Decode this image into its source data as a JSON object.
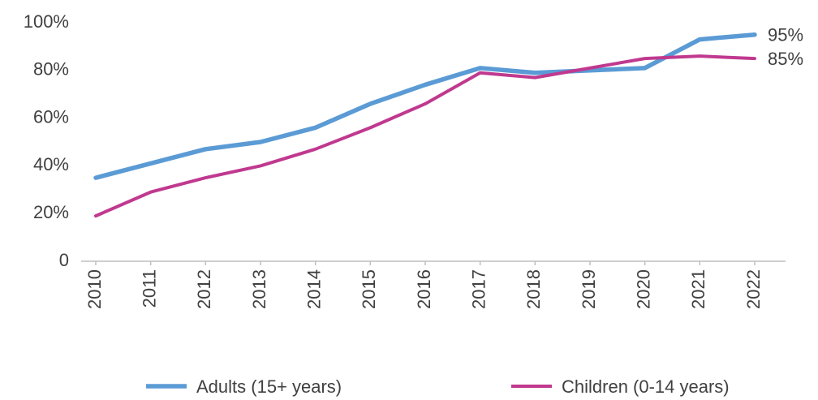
{
  "chart_data": {
    "type": "line",
    "categories": [
      "2010",
      "2011",
      "2012",
      "2013",
      "2014",
      "2015",
      "2016",
      "2017",
      "2018",
      "2019",
      "2020",
      "2021",
      "2022"
    ],
    "series": [
      {
        "name": "Adults (15+ years)",
        "color": "#5b9bd5",
        "values": [
          35,
          41,
          47,
          50,
          56,
          66,
          74,
          81,
          79,
          80,
          81,
          93,
          95
        ],
        "value_labels": [
          null,
          null,
          null,
          null,
          null,
          null,
          null,
          null,
          null,
          null,
          null,
          null,
          "95%"
        ]
      },
      {
        "name": "Children (0-14 years)",
        "color": "#c0398f",
        "values": [
          19,
          29,
          35,
          40,
          47,
          56,
          66,
          79,
          77,
          81,
          85,
          86,
          85
        ],
        "value_labels": [
          null,
          null,
          null,
          null,
          null,
          null,
          null,
          null,
          null,
          null,
          null,
          null,
          "85%"
        ]
      }
    ],
    "ylim": [
      0,
      100
    ],
    "yticks": [
      0,
      {
        "value": 20,
        "label": "20%"
      },
      {
        "value": 40,
        "label": "40%"
      },
      {
        "value": 60,
        "label": "60%"
      },
      {
        "value": 80,
        "label": "80%"
      },
      {
        "value": 100,
        "label": "100%"
      }
    ],
    "grid": false,
    "legend": "bottom"
  }
}
